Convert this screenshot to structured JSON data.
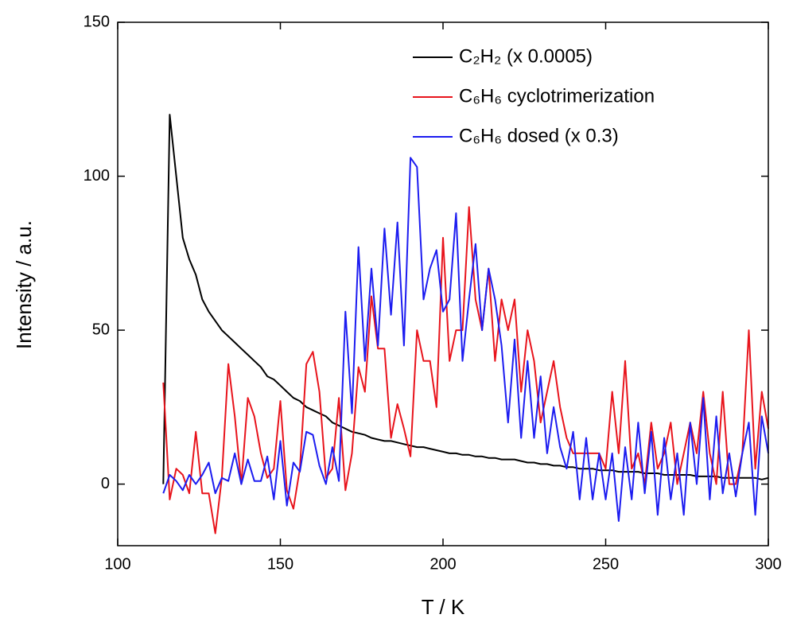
{
  "chart_data": {
    "type": "line",
    "xlabel": "T / K",
    "ylabel": "Intensity / a.u.",
    "xlim": [
      100,
      300
    ],
    "xticks": [
      100,
      150,
      200,
      250,
      300
    ],
    "ylim": [
      -20,
      150
    ],
    "yticks": [
      0,
      50,
      100,
      150
    ],
    "legend": "upper right",
    "x": [
      114,
      116,
      118,
      120,
      122,
      124,
      126,
      128,
      130,
      132,
      134,
      136,
      138,
      140,
      142,
      144,
      146,
      148,
      150,
      152,
      154,
      156,
      158,
      160,
      162,
      164,
      166,
      168,
      170,
      172,
      174,
      176,
      178,
      180,
      182,
      184,
      186,
      188,
      190,
      192,
      194,
      196,
      198,
      200,
      202,
      204,
      206,
      208,
      210,
      212,
      214,
      216,
      218,
      220,
      222,
      224,
      226,
      228,
      230,
      232,
      234,
      236,
      238,
      240,
      242,
      244,
      246,
      248,
      250,
      252,
      254,
      256,
      258,
      260,
      262,
      264,
      266,
      268,
      270,
      272,
      274,
      276,
      278,
      280,
      282,
      284,
      286,
      288,
      290,
      292,
      294,
      296,
      298,
      300
    ],
    "series": [
      {
        "name": "C₂H₂ (x 0.0005)",
        "color": "#000000",
        "values": [
          0,
          120,
          100,
          80,
          73,
          68,
          60,
          56,
          53,
          50,
          48,
          46,
          44,
          42,
          40,
          38,
          35,
          34,
          32,
          30,
          28,
          27,
          25,
          24,
          23,
          22,
          20,
          19,
          18,
          17,
          16.5,
          16,
          15,
          14.5,
          14,
          14,
          13.5,
          13,
          12.5,
          12,
          12,
          11.5,
          11,
          10.5,
          10,
          10,
          9.5,
          9.5,
          9,
          9,
          8.5,
          8.5,
          8,
          8,
          8,
          7.5,
          7,
          7,
          6.5,
          6.5,
          6,
          6,
          5.5,
          5.5,
          5,
          5,
          5,
          4.5,
          4.5,
          4.5,
          4,
          4,
          4,
          4,
          3.5,
          3.5,
          3.5,
          3,
          3,
          3,
          3,
          3,
          2.5,
          2.5,
          2.5,
          2.5,
          2,
          2,
          2,
          2,
          2,
          2,
          1.5,
          2
        ]
      },
      {
        "name": "C₆H₆ cyclotrimerization",
        "color": "#e8141c",
        "values": [
          33,
          -5,
          5,
          3,
          -3,
          17,
          -3,
          -3,
          -16,
          2,
          39,
          22,
          0,
          28,
          22,
          10,
          2,
          5,
          27,
          -2,
          -8,
          5,
          39,
          43,
          30,
          2,
          5,
          28,
          -2,
          10,
          38,
          30,
          61,
          44,
          44,
          15,
          26,
          18,
          9,
          50,
          40,
          40,
          25,
          80,
          40,
          50,
          50,
          90,
          60,
          50,
          70,
          40,
          60,
          50,
          60,
          30,
          50,
          40,
          20,
          30,
          40,
          25,
          15,
          10,
          10,
          10,
          10,
          10,
          5,
          30,
          10,
          40,
          5,
          10,
          0,
          20,
          5,
          10,
          20,
          0,
          10,
          20,
          10,
          30,
          10,
          0,
          30,
          0,
          0,
          10,
          50,
          5,
          30,
          18
        ]
      },
      {
        "name": "C₆H₆ dosed (x 0.3)",
        "color": "#1c1cf0",
        "values": [
          -3,
          3,
          1,
          -2,
          3,
          0,
          3,
          7,
          -3,
          2,
          1,
          10,
          0,
          8,
          1,
          1,
          9,
          -5,
          14,
          -7,
          7,
          4,
          17,
          16,
          6,
          0,
          12,
          1,
          56,
          23,
          77,
          40,
          70,
          45,
          83,
          55,
          85,
          45,
          106,
          103,
          60,
          70,
          76,
          56,
          60,
          88,
          40,
          60,
          78,
          50,
          70,
          60,
          45,
          20,
          47,
          15,
          40,
          15,
          35,
          10,
          25,
          12,
          5,
          17,
          -5,
          15,
          -5,
          10,
          -5,
          10,
          -12,
          12,
          -5,
          20,
          -3,
          17,
          -10,
          15,
          -5,
          10,
          -10,
          20,
          0,
          28,
          -5,
          22,
          -3,
          10,
          -4,
          10,
          20,
          -10,
          22,
          10
        ]
      }
    ]
  }
}
